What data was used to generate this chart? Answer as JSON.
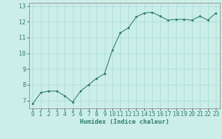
{
  "x": [
    0,
    1,
    2,
    3,
    4,
    5,
    6,
    7,
    8,
    9,
    10,
    11,
    12,
    13,
    14,
    15,
    16,
    17,
    18,
    19,
    20,
    21,
    22,
    23
  ],
  "y": [
    6.8,
    7.5,
    7.6,
    7.6,
    7.3,
    6.9,
    7.6,
    8.0,
    8.4,
    8.7,
    10.2,
    11.3,
    11.6,
    12.3,
    12.55,
    12.6,
    12.35,
    12.1,
    12.15,
    12.15,
    12.1,
    12.35,
    12.1,
    12.55
  ],
  "line_color": "#2e7d6e",
  "marker": "o",
  "marker_size": 1.8,
  "bg_color": "#cceee8",
  "grid_color": "#aadddd",
  "xlabel": "Humidex (Indice chaleur)",
  "xlabel_fontsize": 6.5,
  "tick_fontsize": 6,
  "ylim": [
    6.5,
    13.2
  ],
  "xlim": [
    -0.5,
    23.5
  ],
  "yticks": [
    7,
    8,
    9,
    10,
    11,
    12,
    13
  ],
  "xticks": [
    0,
    1,
    2,
    3,
    4,
    5,
    6,
    7,
    8,
    9,
    10,
    11,
    12,
    13,
    14,
    15,
    16,
    17,
    18,
    19,
    20,
    21,
    22,
    23
  ]
}
